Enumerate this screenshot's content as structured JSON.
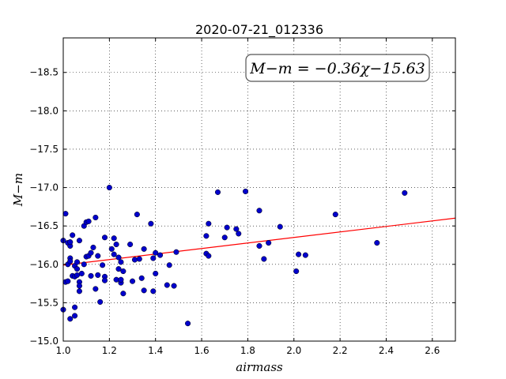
{
  "chart_data": {
    "type": "scatter",
    "title": "2020-07-21_012336",
    "xlabel": "airmass",
    "ylabel": "M−m",
    "xlim": [
      1.0,
      2.7
    ],
    "ylim": [
      -18.95,
      -15.0
    ],
    "y_inverted": true,
    "grid": true,
    "grid_style": "dotted",
    "x_ticks": [
      1.0,
      1.2,
      1.4,
      1.6,
      1.8,
      2.0,
      2.2,
      2.4,
      2.6
    ],
    "x_tick_labels": [
      "1.0",
      "1.2",
      "1.4",
      "1.6",
      "1.8",
      "2.0",
      "2.2",
      "2.4",
      "2.6"
    ],
    "y_ticks": [
      -15.0,
      -15.5,
      -16.0,
      -16.5,
      -17.0,
      -17.5,
      -18.0,
      -18.5
    ],
    "y_tick_labels": [
      "−15.0",
      "−15.5",
      "−16.0",
      "−16.5",
      "−17.0",
      "−17.5",
      "−18.0",
      "−18.5"
    ],
    "annotation": "M−m = −0.36χ−15.63",
    "annotation_position": "top-right",
    "marker_color": "#0000cc",
    "fit_color": "#ff0000",
    "fit": {
      "slope": -0.36,
      "intercept": -15.63
    },
    "points": [
      {
        "x": 1.0,
        "y": -15.41
      },
      {
        "x": 1.0,
        "y": -16.31
      },
      {
        "x": 1.01,
        "y": -15.77
      },
      {
        "x": 1.01,
        "y": -16.66
      },
      {
        "x": 1.02,
        "y": -15.78
      },
      {
        "x": 1.02,
        "y": -16.28
      },
      {
        "x": 1.02,
        "y": -16.0
      },
      {
        "x": 1.03,
        "y": -16.24
      },
      {
        "x": 1.03,
        "y": -16.08
      },
      {
        "x": 1.03,
        "y": -16.29
      },
      {
        "x": 1.03,
        "y": -16.04
      },
      {
        "x": 1.03,
        "y": -15.29
      },
      {
        "x": 1.04,
        "y": -15.85
      },
      {
        "x": 1.04,
        "y": -16.38
      },
      {
        "x": 1.05,
        "y": -15.33
      },
      {
        "x": 1.05,
        "y": -15.44
      },
      {
        "x": 1.05,
        "y": -15.98
      },
      {
        "x": 1.05,
        "y": -15.84
      },
      {
        "x": 1.06,
        "y": -15.94
      },
      {
        "x": 1.06,
        "y": -16.03
      },
      {
        "x": 1.06,
        "y": -15.86
      },
      {
        "x": 1.07,
        "y": -15.65
      },
      {
        "x": 1.07,
        "y": -15.77
      },
      {
        "x": 1.07,
        "y": -15.72
      },
      {
        "x": 1.07,
        "y": -16.31
      },
      {
        "x": 1.08,
        "y": -15.88
      },
      {
        "x": 1.09,
        "y": -16.0
      },
      {
        "x": 1.09,
        "y": -16.5
      },
      {
        "x": 1.1,
        "y": -16.55
      },
      {
        "x": 1.1,
        "y": -16.1
      },
      {
        "x": 1.11,
        "y": -16.11
      },
      {
        "x": 1.11,
        "y": -16.56
      },
      {
        "x": 1.12,
        "y": -15.85
      },
      {
        "x": 1.12,
        "y": -16.15
      },
      {
        "x": 1.13,
        "y": -16.22
      },
      {
        "x": 1.14,
        "y": -15.68
      },
      {
        "x": 1.14,
        "y": -16.61
      },
      {
        "x": 1.15,
        "y": -15.86
      },
      {
        "x": 1.15,
        "y": -16.11
      },
      {
        "x": 1.16,
        "y": -15.51
      },
      {
        "x": 1.17,
        "y": -15.99
      },
      {
        "x": 1.18,
        "y": -15.84
      },
      {
        "x": 1.18,
        "y": -16.35
      },
      {
        "x": 1.18,
        "y": -15.79
      },
      {
        "x": 1.2,
        "y": -17.0
      },
      {
        "x": 1.21,
        "y": -16.2
      },
      {
        "x": 1.22,
        "y": -16.34
      },
      {
        "x": 1.22,
        "y": -16.13
      },
      {
        "x": 1.23,
        "y": -16.26
      },
      {
        "x": 1.23,
        "y": -15.8
      },
      {
        "x": 1.24,
        "y": -16.09
      },
      {
        "x": 1.24,
        "y": -15.94
      },
      {
        "x": 1.25,
        "y": -16.03
      },
      {
        "x": 1.25,
        "y": -15.76
      },
      {
        "x": 1.25,
        "y": -15.8
      },
      {
        "x": 1.26,
        "y": -15.91
      },
      {
        "x": 1.26,
        "y": -15.62
      },
      {
        "x": 1.29,
        "y": -16.26
      },
      {
        "x": 1.3,
        "y": -15.78
      },
      {
        "x": 1.31,
        "y": -16.06
      },
      {
        "x": 1.32,
        "y": -16.65
      },
      {
        "x": 1.33,
        "y": -16.07
      },
      {
        "x": 1.34,
        "y": -15.82
      },
      {
        "x": 1.35,
        "y": -15.66
      },
      {
        "x": 1.35,
        "y": -16.2
      },
      {
        "x": 1.38,
        "y": -16.53
      },
      {
        "x": 1.39,
        "y": -16.08
      },
      {
        "x": 1.39,
        "y": -15.65
      },
      {
        "x": 1.4,
        "y": -16.15
      },
      {
        "x": 1.4,
        "y": -15.88
      },
      {
        "x": 1.42,
        "y": -16.12
      },
      {
        "x": 1.45,
        "y": -15.73
      },
      {
        "x": 1.46,
        "y": -15.99
      },
      {
        "x": 1.48,
        "y": -15.72
      },
      {
        "x": 1.49,
        "y": -16.16
      },
      {
        "x": 1.54,
        "y": -15.23
      },
      {
        "x": 1.62,
        "y": -16.14
      },
      {
        "x": 1.62,
        "y": -16.37
      },
      {
        "x": 1.63,
        "y": -16.11
      },
      {
        "x": 1.63,
        "y": -16.53
      },
      {
        "x": 1.67,
        "y": -16.94
      },
      {
        "x": 1.7,
        "y": -16.35
      },
      {
        "x": 1.71,
        "y": -16.48
      },
      {
        "x": 1.75,
        "y": -16.46
      },
      {
        "x": 1.76,
        "y": -16.4
      },
      {
        "x": 1.79,
        "y": -16.95
      },
      {
        "x": 1.85,
        "y": -16.24
      },
      {
        "x": 1.85,
        "y": -16.7
      },
      {
        "x": 1.87,
        "y": -16.07
      },
      {
        "x": 1.89,
        "y": -16.28
      },
      {
        "x": 1.94,
        "y": -16.49
      },
      {
        "x": 2.01,
        "y": -15.91
      },
      {
        "x": 2.02,
        "y": -16.13
      },
      {
        "x": 2.05,
        "y": -16.12
      },
      {
        "x": 2.18,
        "y": -16.65
      },
      {
        "x": 2.36,
        "y": -16.28
      },
      {
        "x": 2.48,
        "y": -16.93
      }
    ]
  }
}
